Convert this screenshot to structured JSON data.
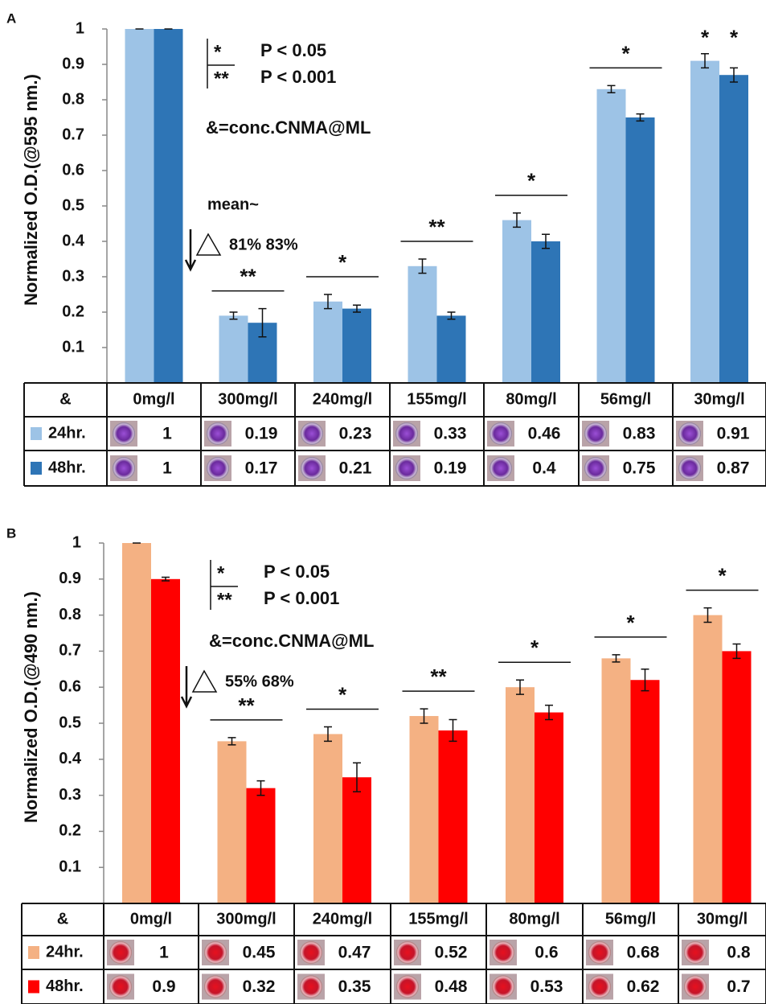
{
  "chart_data": [
    {
      "type": "bar",
      "panel_label": "A",
      "y_label": "Normalized O.D.(@595 nm.)",
      "categories": [
        "0mg/l",
        "300mg/l",
        "240mg/l",
        "155mg/l",
        "80mg/l",
        "56mg/l",
        "30mg/l"
      ],
      "series": [
        {
          "name": "24hr.",
          "color": "#9dc3e6",
          "values": [
            1,
            0.19,
            0.23,
            0.33,
            0.46,
            0.83,
            0.91
          ],
          "errors": [
            0,
            0.01,
            0.02,
            0.02,
            0.02,
            0.01,
            0.02
          ]
        },
        {
          "name": "48hr.",
          "color": "#2e75b6",
          "values": [
            1,
            0.17,
            0.21,
            0.19,
            0.4,
            0.75,
            0.87
          ],
          "errors": [
            0,
            0.04,
            0.01,
            0.01,
            0.02,
            0.01,
            0.02
          ]
        }
      ],
      "ylim": [
        0,
        1
      ],
      "yticks": [
        0.1,
        0.2,
        0.3,
        0.4,
        0.5,
        0.6,
        0.7,
        0.8,
        0.9,
        1
      ],
      "significance": [
        null,
        "**",
        "*",
        "**",
        "*",
        "*",
        [
          "*",
          "*"
        ]
      ],
      "significance_legend": [
        {
          "symbol": "*",
          "text": "P < 0.05"
        },
        {
          "symbol": "**",
          "text": "P < 0.001"
        }
      ],
      "note": "&=conc.CNMA@ML",
      "mean_label": "mean~",
      "delta_label": "81% 83%",
      "table_header": "&"
    },
    {
      "type": "bar",
      "panel_label": "B",
      "y_label": "Normalized O.D.(@490 nm.)",
      "categories": [
        "0mg/l",
        "300mg/l",
        "240mg/l",
        "155mg/l",
        "80mg/l",
        "56mg/l",
        "30mg/l"
      ],
      "series": [
        {
          "name": "24hr.",
          "color": "#f4b183",
          "values": [
            1,
            0.45,
            0.47,
            0.52,
            0.6,
            0.68,
            0.8
          ],
          "errors": [
            0,
            0.01,
            0.02,
            0.02,
            0.02,
            0.01,
            0.02
          ]
        },
        {
          "name": "48hr.",
          "color": "#ff0000",
          "values": [
            0.9,
            0.32,
            0.35,
            0.48,
            0.53,
            0.62,
            0.7
          ],
          "errors": [
            0.005,
            0.02,
            0.04,
            0.03,
            0.02,
            0.03,
            0.02
          ]
        }
      ],
      "ylim": [
        0,
        1
      ],
      "yticks": [
        0.1,
        0.2,
        0.3,
        0.4,
        0.5,
        0.6,
        0.7,
        0.8,
        0.9,
        1
      ],
      "significance": [
        null,
        "**",
        "*",
        "**",
        "*",
        "*",
        "*"
      ],
      "significance_legend": [
        {
          "symbol": "*",
          "text": "P < 0.05"
        },
        {
          "symbol": "**",
          "text": "P < 0.001"
        }
      ],
      "note": "&=conc.CNMA@ML",
      "delta_label": "55% 68%",
      "table_header": "&"
    }
  ]
}
